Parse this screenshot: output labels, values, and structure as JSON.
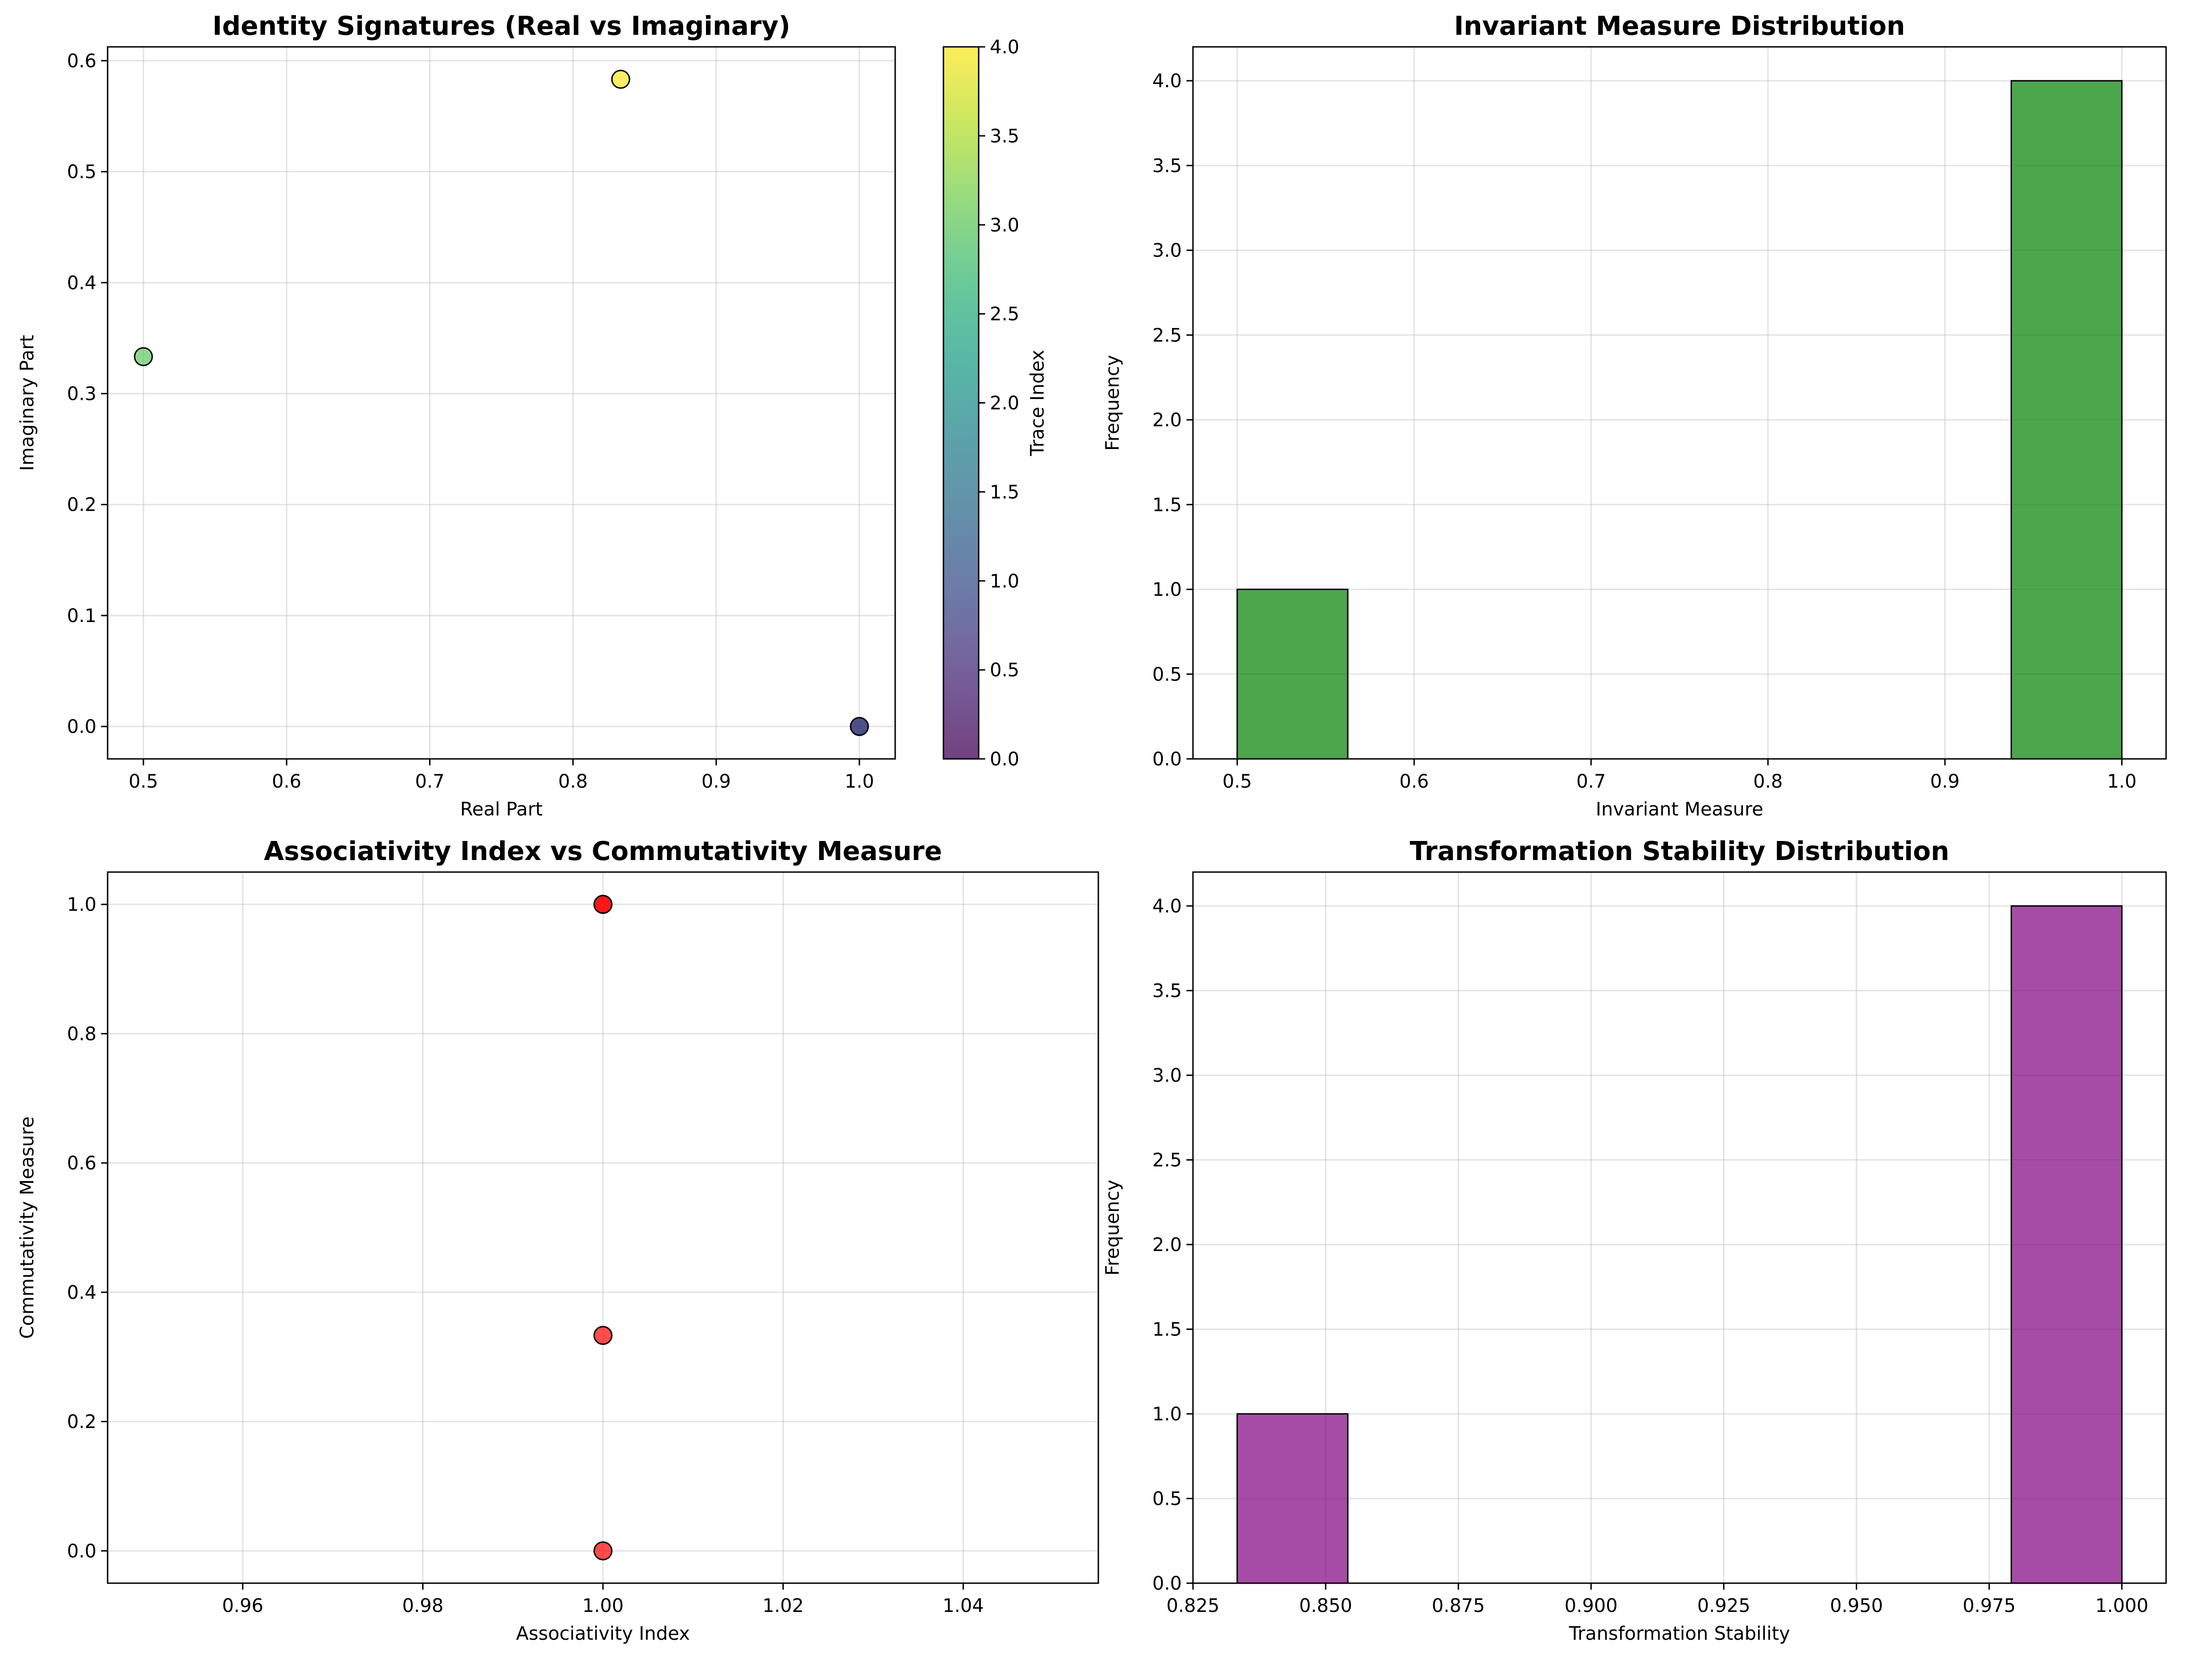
{
  "chart_data": [
    {
      "type": "scatter",
      "title": "Identity Signatures (Real vs Imaginary)",
      "xlabel": "Real Part",
      "ylabel": "Imaginary Part",
      "xlim": [
        0.475,
        1.025
      ],
      "ylim": [
        -0.0292,
        0.6125
      ],
      "xticks": [
        0.5,
        0.6,
        0.7,
        0.8,
        0.9,
        1.0
      ],
      "yticks": [
        0.0,
        0.1,
        0.2,
        0.3,
        0.4,
        0.5,
        0.6
      ],
      "grid": true,
      "points": [
        {
          "x": 1.0,
          "y": 0.0,
          "c": 0
        },
        {
          "x": 1.0,
          "y": 0.0,
          "c": 1
        },
        {
          "x": 0.5,
          "y": 0.3333,
          "c": 3
        },
        {
          "x": 0.8333,
          "y": 0.5833,
          "c": 4
        }
      ],
      "colormap": "viridis",
      "colorbar": {
        "label": "Trace Index",
        "range": [
          0,
          4
        ],
        "ticks": [
          0.0,
          0.5,
          1.0,
          1.5,
          2.0,
          2.5,
          3.0,
          3.5,
          4.0
        ]
      }
    },
    {
      "type": "bar",
      "title": "Invariant Measure Distribution",
      "xlabel": "Invariant Measure",
      "ylabel": "Frequency",
      "xlim": [
        0.475,
        1.025
      ],
      "ylim": [
        0,
        4.2
      ],
      "xticks": [
        0.5,
        0.6,
        0.7,
        0.8,
        0.9,
        1.0
      ],
      "yticks": [
        0.0,
        0.5,
        1.0,
        1.5,
        2.0,
        2.5,
        3.0,
        3.5,
        4.0
      ],
      "grid": true,
      "color": "#008000",
      "bins": [
        {
          "x0": 0.5,
          "x1": 0.5625,
          "count": 1
        },
        {
          "x0": 0.5625,
          "x1": 0.625,
          "count": 0
        },
        {
          "x0": 0.625,
          "x1": 0.6875,
          "count": 0
        },
        {
          "x0": 0.6875,
          "x1": 0.75,
          "count": 0
        },
        {
          "x0": 0.75,
          "x1": 0.8125,
          "count": 0
        },
        {
          "x0": 0.8125,
          "x1": 0.875,
          "count": 0
        },
        {
          "x0": 0.875,
          "x1": 0.9375,
          "count": 0
        },
        {
          "x0": 0.9375,
          "x1": 1.0,
          "count": 4
        }
      ]
    },
    {
      "type": "scatter",
      "title": "Associativity Index vs Commutativity Measure",
      "xlabel": "Associativity Index",
      "ylabel": "Commutativity Measure",
      "xlim": [
        0.945,
        1.055
      ],
      "ylim": [
        -0.05,
        1.05
      ],
      "xticks": [
        0.96,
        0.98,
        1.0,
        1.02,
        1.04
      ],
      "yticks": [
        0.0,
        0.2,
        0.4,
        0.6,
        0.8,
        1.0
      ],
      "grid": true,
      "color": "#ff0000",
      "points": [
        {
          "x": 1.0,
          "y": 1.0
        },
        {
          "x": 1.0,
          "y": 1.0
        },
        {
          "x": 1.0,
          "y": 0.3333
        },
        {
          "x": 1.0,
          "y": 0.0
        }
      ]
    },
    {
      "type": "bar",
      "title": "Transformation Stability Distribution",
      "xlabel": "Transformation Stability",
      "ylabel": "Frequency",
      "xlim": [
        0.825,
        1.00833
      ],
      "ylim": [
        0,
        4.2
      ],
      "xticks": [
        0.825,
        0.85,
        0.875,
        0.9,
        0.925,
        0.95,
        0.975,
        1.0
      ],
      "yticks": [
        0.0,
        0.5,
        1.0,
        1.5,
        2.0,
        2.5,
        3.0,
        3.5,
        4.0
      ],
      "grid": true,
      "color": "#800080",
      "bins": [
        {
          "x0": 0.83333,
          "x1": 0.85417,
          "count": 1
        },
        {
          "x0": 0.85417,
          "x1": 0.875,
          "count": 0
        },
        {
          "x0": 0.875,
          "x1": 0.89583,
          "count": 0
        },
        {
          "x0": 0.89583,
          "x1": 0.91667,
          "count": 0
        },
        {
          "x0": 0.91667,
          "x1": 0.9375,
          "count": 0
        },
        {
          "x0": 0.9375,
          "x1": 0.95833,
          "count": 0
        },
        {
          "x0": 0.95833,
          "x1": 0.97917,
          "count": 0
        },
        {
          "x0": 0.97917,
          "x1": 1.0,
          "count": 4
        }
      ]
    }
  ]
}
